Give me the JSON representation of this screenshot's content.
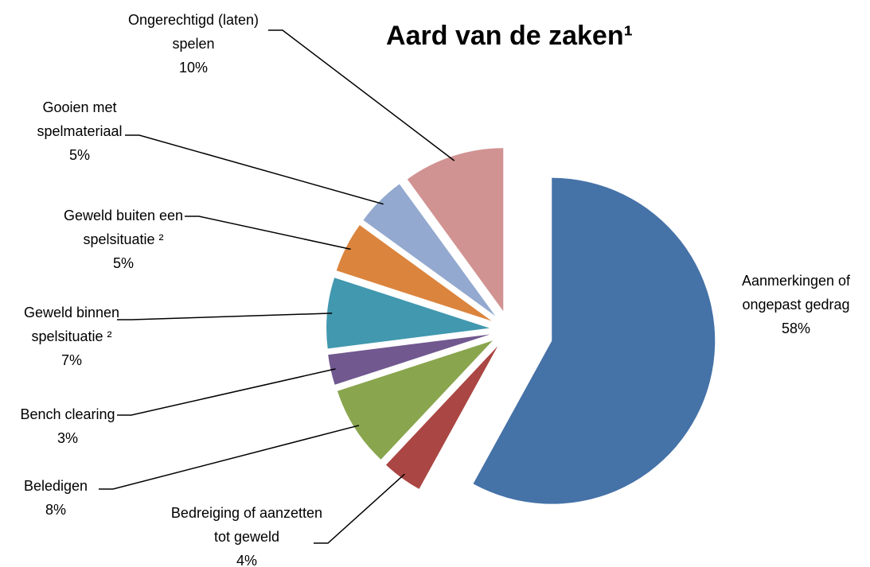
{
  "chart_data": {
    "type": "pie",
    "title": "Aard van de zaken¹",
    "categories": [
      "Aanmerkingen of ongepast gedrag",
      "Bedreiging of aanzetten tot geweld",
      "Beledigen",
      "Bench clearing",
      "Geweld binnen spelsituatie ²",
      "Geweld buiten een spelsituatie ²",
      "Gooien met spelmateriaal",
      "Ongerechtigd (laten) spelen"
    ],
    "values": [
      58,
      4,
      8,
      3,
      7,
      5,
      5,
      10
    ],
    "value_labels": [
      "58%",
      "4%",
      "8%",
      "3%",
      "7%",
      "5%",
      "5%",
      "10%"
    ],
    "colors": [
      "#4572a7",
      "#aa4643",
      "#89a54e",
      "#71588f",
      "#4198af",
      "#db843d",
      "#93a9cf",
      "#d19392"
    ],
    "exploded": true
  }
}
